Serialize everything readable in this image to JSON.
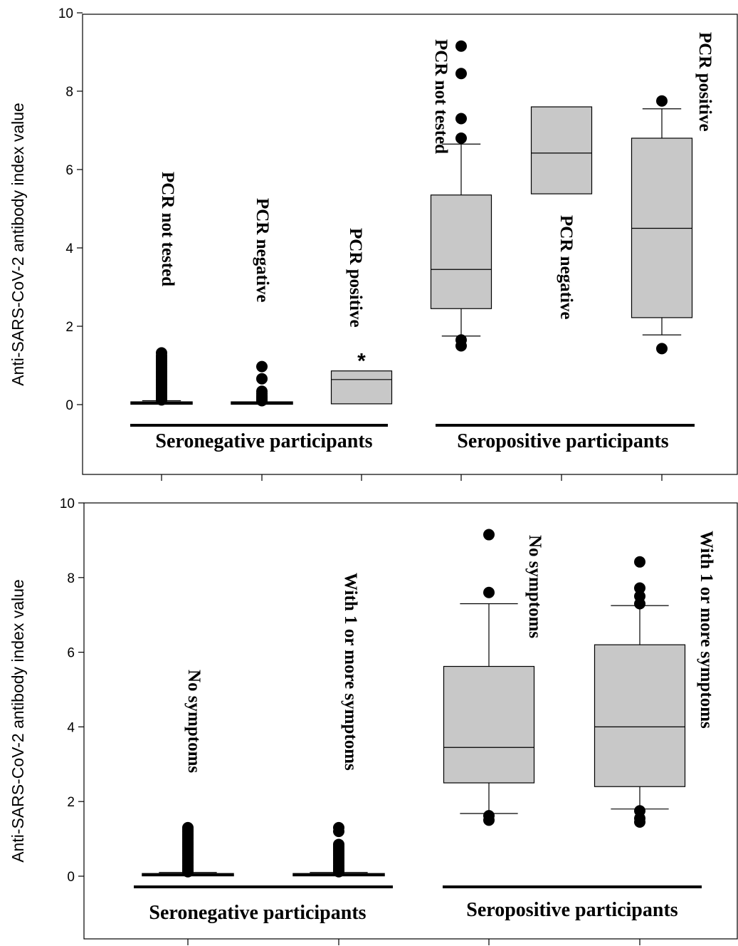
{
  "chart_data": [
    {
      "type": "box",
      "ylabel": "Anti-SARS-CoV-2 antibody index value",
      "ylim": [
        -1.8,
        10
      ],
      "yticks": [
        0,
        2,
        4,
        6,
        8,
        10
      ],
      "grid": false,
      "groups": [
        {
          "label": "Seronegative participants"
        },
        {
          "label": "Seropositive participants"
        }
      ],
      "boxes": [
        {
          "label": "PCR not tested",
          "group": "Seronegative participants",
          "q1": 0.02,
          "median": 0.04,
          "q3": 0.06,
          "whisker_low": 0.0,
          "whisker_high": 0.1,
          "outliers": [
            0.12,
            0.16,
            0.2,
            0.25,
            0.3,
            0.35,
            0.4,
            0.45,
            0.5,
            0.55,
            0.6,
            0.65,
            0.7,
            0.75,
            0.8,
            0.85,
            0.9,
            0.95,
            1.0,
            1.05,
            1.1,
            1.15,
            1.2,
            1.25,
            1.32
          ]
        },
        {
          "label": "PCR negative",
          "group": "Seronegative participants",
          "q1": 0.02,
          "median": 0.04,
          "q3": 0.06,
          "whisker_low": 0.0,
          "whisker_high": 0.08,
          "outliers": [
            0.1,
            0.14,
            0.18,
            0.22,
            0.28,
            0.34,
            0.66,
            0.97
          ]
        },
        {
          "label": "PCR positive",
          "group": "Seronegative participants",
          "q1": 0.02,
          "median": 0.64,
          "q3": 0.86,
          "whisker_low": 0.0,
          "whisker_high": 0.86,
          "outliers": [],
          "annotation": "*"
        },
        {
          "label": "PCR not tested",
          "group": "Seropositive participants",
          "q1": 2.45,
          "median": 3.45,
          "q3": 5.35,
          "whisker_low": 1.75,
          "whisker_high": 6.65,
          "outliers": [
            1.5,
            1.65,
            6.8,
            7.3,
            8.45,
            9.15
          ]
        },
        {
          "label": "PCR negative",
          "group": "Seropositive participants",
          "q1": 5.38,
          "median": 6.42,
          "q3": 7.6,
          "whisker_low": 5.38,
          "whisker_high": 7.6,
          "outliers": []
        },
        {
          "label": "PCR positive",
          "group": "Seropositive participants",
          "q1": 2.22,
          "median": 4.5,
          "q3": 6.8,
          "whisker_low": 1.78,
          "whisker_high": 7.55,
          "outliers": [
            1.43,
            7.75
          ]
        }
      ]
    },
    {
      "type": "box",
      "ylabel": "Anti-SARS-CoV-2 antibody index value",
      "ylim": [
        -1.8,
        10
      ],
      "yticks": [
        0,
        2,
        4,
        6,
        8,
        10
      ],
      "grid": false,
      "groups": [
        {
          "label": "Seronegative participants"
        },
        {
          "label": "Seropositive participants"
        }
      ],
      "boxes": [
        {
          "label": "No symptoms",
          "group": "Seronegative participants",
          "q1": 0.02,
          "median": 0.04,
          "q3": 0.06,
          "whisker_low": 0.0,
          "whisker_high": 0.1,
          "outliers": [
            0.12,
            0.16,
            0.2,
            0.25,
            0.3,
            0.35,
            0.4,
            0.45,
            0.5,
            0.55,
            0.6,
            0.65,
            0.7,
            0.75,
            0.8,
            0.85,
            0.9,
            0.95,
            1.0,
            1.05,
            1.1,
            1.15,
            1.2,
            1.25,
            1.3
          ]
        },
        {
          "label": "With 1 or more symptoms",
          "group": "Seronegative participants",
          "q1": 0.02,
          "median": 0.04,
          "q3": 0.06,
          "whisker_low": 0.0,
          "whisker_high": 0.1,
          "outliers": [
            0.12,
            0.16,
            0.2,
            0.25,
            0.3,
            0.35,
            0.4,
            0.45,
            0.5,
            0.55,
            0.6,
            0.65,
            0.7,
            0.75,
            0.8,
            0.85,
            1.2,
            1.3
          ]
        },
        {
          "label": "No symptoms",
          "group": "Seropositive participants",
          "q1": 2.5,
          "median": 3.45,
          "q3": 5.62,
          "whisker_low": 1.68,
          "whisker_high": 7.3,
          "outliers": [
            1.5,
            1.62,
            7.6,
            9.15
          ]
        },
        {
          "label": "With 1 or more symptoms",
          "group": "Seropositive participants",
          "q1": 2.4,
          "median": 4.0,
          "q3": 6.2,
          "whisker_low": 1.8,
          "whisker_high": 7.25,
          "outliers": [
            1.45,
            1.55,
            1.75,
            7.3,
            7.5,
            7.72,
            8.42
          ]
        }
      ]
    }
  ]
}
